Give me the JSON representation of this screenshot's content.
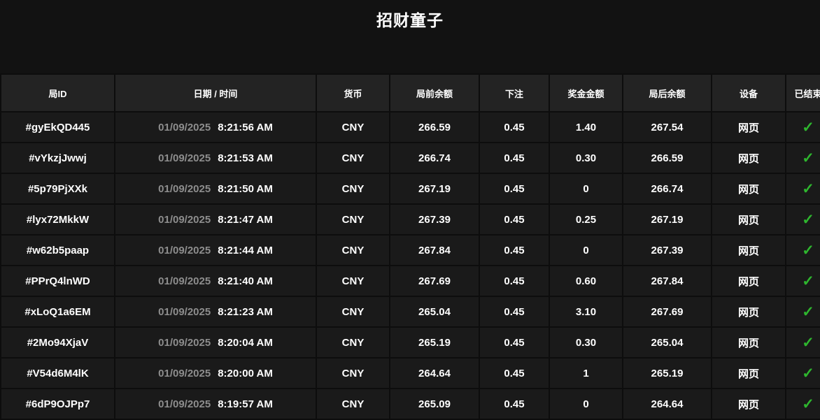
{
  "page": {
    "title": "招财童子"
  },
  "colors": {
    "page_bg": "#121212",
    "header_bg": "#232323",
    "cell_bg": "#1a1a1a",
    "border": "#0d0d0d",
    "text": "#ffffff",
    "date_text": "#8d8d8d",
    "check_green": "#2eb62e"
  },
  "icons": {
    "settled_check": "✓"
  },
  "table": {
    "columns": [
      {
        "key": "round_id",
        "label": "局ID"
      },
      {
        "key": "datetime",
        "label": "日期 / 时间"
      },
      {
        "key": "currency",
        "label": "货币"
      },
      {
        "key": "balance_before",
        "label": "局前余额"
      },
      {
        "key": "bet",
        "label": "下注"
      },
      {
        "key": "bonus",
        "label": "奖金金额"
      },
      {
        "key": "balance_after",
        "label": "局后余额"
      },
      {
        "key": "device",
        "label": "设备"
      },
      {
        "key": "settled",
        "label": "已结束"
      }
    ],
    "rows": [
      {
        "id": "#gyEkQD445",
        "date": "01/09/2025",
        "time": "8:21:56 AM",
        "currency": "CNY",
        "balance_before": "266.59",
        "bet": "0.45",
        "bonus": "1.40",
        "balance_after": "267.54",
        "device": "网页",
        "settled": true
      },
      {
        "id": "#vYkzjJwwj",
        "date": "01/09/2025",
        "time": "8:21:53 AM",
        "currency": "CNY",
        "balance_before": "266.74",
        "bet": "0.45",
        "bonus": "0.30",
        "balance_after": "266.59",
        "device": "网页",
        "settled": true
      },
      {
        "id": "#5p79PjXXk",
        "date": "01/09/2025",
        "time": "8:21:50 AM",
        "currency": "CNY",
        "balance_before": "267.19",
        "bet": "0.45",
        "bonus": "0",
        "balance_after": "266.74",
        "device": "网页",
        "settled": true
      },
      {
        "id": "#lyx72MkkW",
        "date": "01/09/2025",
        "time": "8:21:47 AM",
        "currency": "CNY",
        "balance_before": "267.39",
        "bet": "0.45",
        "bonus": "0.25",
        "balance_after": "267.19",
        "device": "网页",
        "settled": true
      },
      {
        "id": "#w62b5paap",
        "date": "01/09/2025",
        "time": "8:21:44 AM",
        "currency": "CNY",
        "balance_before": "267.84",
        "bet": "0.45",
        "bonus": "0",
        "balance_after": "267.39",
        "device": "网页",
        "settled": true
      },
      {
        "id": "#PPrQ4lnWD",
        "date": "01/09/2025",
        "time": "8:21:40 AM",
        "currency": "CNY",
        "balance_before": "267.69",
        "bet": "0.45",
        "bonus": "0.60",
        "balance_after": "267.84",
        "device": "网页",
        "settled": true
      },
      {
        "id": "#xLoQ1a6EM",
        "date": "01/09/2025",
        "time": "8:21:23 AM",
        "currency": "CNY",
        "balance_before": "265.04",
        "bet": "0.45",
        "bonus": "3.10",
        "balance_after": "267.69",
        "device": "网页",
        "settled": true
      },
      {
        "id": "#2Mo94XjaV",
        "date": "01/09/2025",
        "time": "8:20:04 AM",
        "currency": "CNY",
        "balance_before": "265.19",
        "bet": "0.45",
        "bonus": "0.30",
        "balance_after": "265.04",
        "device": "网页",
        "settled": true
      },
      {
        "id": "#V54d6M4lK",
        "date": "01/09/2025",
        "time": "8:20:00 AM",
        "currency": "CNY",
        "balance_before": "264.64",
        "bet": "0.45",
        "bonus": "1",
        "balance_after": "265.19",
        "device": "网页",
        "settled": true
      },
      {
        "id": "#6dP9OJPp7",
        "date": "01/09/2025",
        "time": "8:19:57 AM",
        "currency": "CNY",
        "balance_before": "265.09",
        "bet": "0.45",
        "bonus": "0",
        "balance_after": "264.64",
        "device": "网页",
        "settled": true
      }
    ]
  }
}
